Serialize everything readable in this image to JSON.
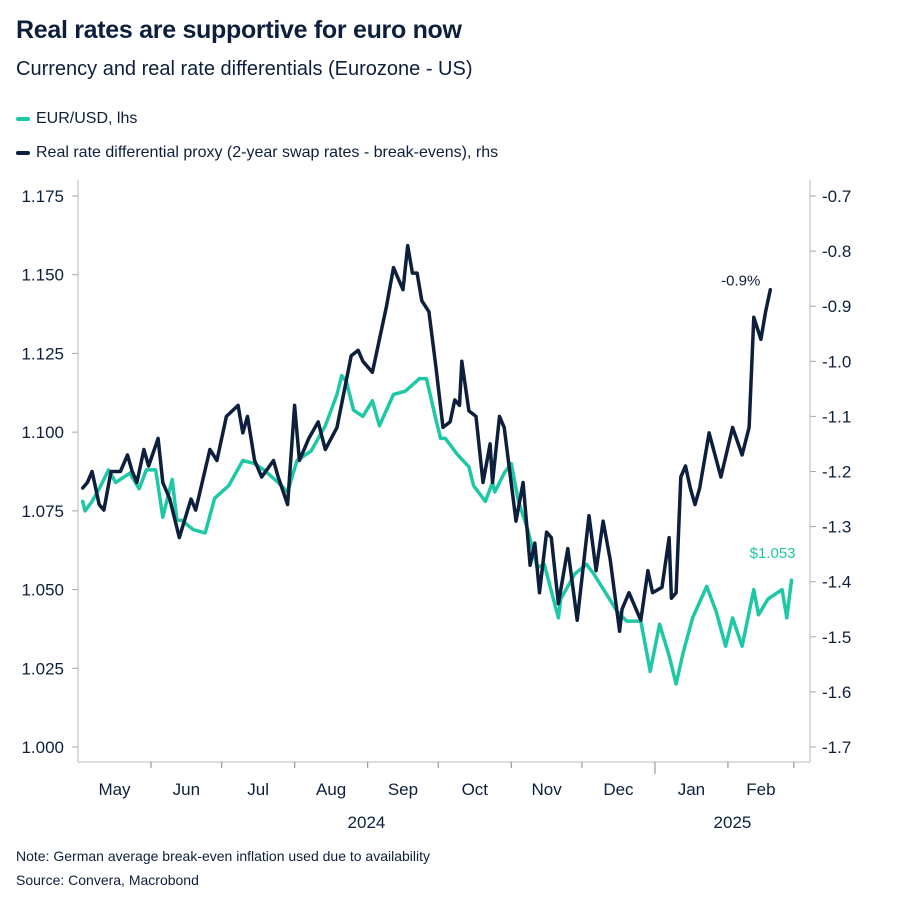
{
  "title": "Real rates are supportive for euro now",
  "subtitle": "Currency and real rate differentials (Eurozone - US)",
  "note": "Note: German average break-even inflation used due to availability",
  "source": "Source: Convera, Macrobond",
  "colors": {
    "eurusd": "#1ec8a5",
    "real_rate": "#0d1f3c",
    "axis": "#d0d0d0",
    "text": "#0d1f3c"
  },
  "chart_data": {
    "type": "line",
    "title": "Real rates are supportive for euro now",
    "subtitle": "Currency and real rate differentials (Eurozone - US)",
    "grid": false,
    "legend_placement": "top-left",
    "x_range": [
      "2024-05-01",
      "2025-03-07"
    ],
    "x_month_labels": [
      "May",
      "Jun",
      "Jul",
      "Aug",
      "Sep",
      "Oct",
      "Nov",
      "Dec",
      "Jan",
      "Feb"
    ],
    "x_year_labels": [
      "2024",
      "2025"
    ],
    "y_left": {
      "range": [
        1.0,
        1.175
      ],
      "ticks": [
        "1.000",
        "1.025",
        "1.050",
        "1.075",
        "1.100",
        "1.125",
        "1.150",
        "1.175"
      ]
    },
    "y_right": {
      "range": [
        -1.7,
        -0.7
      ],
      "ticks": [
        "-1.7",
        "-1.6",
        "-1.5",
        "-1.4",
        "-1.3",
        "-1.2",
        "-1.1",
        "-1.0",
        "-0.9",
        "-0.8",
        "-0.7"
      ]
    },
    "series": [
      {
        "name": "EUR/USD, lhs",
        "axis": "left",
        "color": "#1ec8a5",
        "end_label": "$1.053",
        "points": [
          [
            "2024-05-03",
            1.078
          ],
          [
            "2024-05-04",
            1.075
          ],
          [
            "2024-05-07",
            1.078
          ],
          [
            "2024-05-10",
            1.082
          ],
          [
            "2024-05-14",
            1.088
          ],
          [
            "2024-05-17",
            1.084
          ],
          [
            "2024-05-23",
            1.087
          ],
          [
            "2024-05-27",
            1.082
          ],
          [
            "2024-05-30",
            1.088
          ],
          [
            "2024-06-03",
            1.088
          ],
          [
            "2024-06-06",
            1.073
          ],
          [
            "2024-06-10",
            1.085
          ],
          [
            "2024-06-12",
            1.072
          ],
          [
            "2024-06-14",
            1.072
          ],
          [
            "2024-06-19",
            1.069
          ],
          [
            "2024-06-24",
            1.068
          ],
          [
            "2024-06-28",
            1.079
          ],
          [
            "2024-07-04",
            1.083
          ],
          [
            "2024-07-10",
            1.091
          ],
          [
            "2024-07-15",
            1.09
          ],
          [
            "2024-07-19",
            1.088
          ],
          [
            "2024-07-25",
            1.084
          ],
          [
            "2024-07-29",
            1.081
          ],
          [
            "2024-08-02",
            1.091
          ],
          [
            "2024-08-08",
            1.094
          ],
          [
            "2024-08-14",
            1.102
          ],
          [
            "2024-08-19",
            1.112
          ],
          [
            "2024-08-21",
            1.118
          ],
          [
            "2024-08-23",
            1.116
          ],
          [
            "2024-08-26",
            1.107
          ],
          [
            "2024-08-30",
            1.105
          ],
          [
            "2024-09-03",
            1.11
          ],
          [
            "2024-09-06",
            1.102
          ],
          [
            "2024-09-12",
            1.112
          ],
          [
            "2024-09-17",
            1.113
          ],
          [
            "2024-09-23",
            1.117
          ],
          [
            "2024-09-26",
            1.117
          ],
          [
            "2024-09-30",
            1.104
          ],
          [
            "2024-10-02",
            1.098
          ],
          [
            "2024-10-04",
            1.098
          ],
          [
            "2024-10-09",
            1.093
          ],
          [
            "2024-10-14",
            1.089
          ],
          [
            "2024-10-16",
            1.083
          ],
          [
            "2024-10-21",
            1.078
          ],
          [
            "2024-10-24",
            1.084
          ],
          [
            "2024-10-25",
            1.081
          ],
          [
            "2024-10-29",
            1.087
          ],
          [
            "2024-11-01",
            1.09
          ],
          [
            "2024-11-04",
            1.078
          ],
          [
            "2024-11-08",
            1.069
          ],
          [
            "2024-11-12",
            1.057
          ],
          [
            "2024-11-15",
            1.058
          ],
          [
            "2024-11-21",
            1.041
          ],
          [
            "2024-11-22",
            1.047
          ],
          [
            "2024-11-28",
            1.055
          ],
          [
            "2024-12-03",
            1.058
          ],
          [
            "2024-12-06",
            1.055
          ],
          [
            "2024-12-11",
            1.049
          ],
          [
            "2024-12-16",
            1.043
          ],
          [
            "2024-12-20",
            1.04
          ],
          [
            "2024-12-26",
            1.04
          ],
          [
            "2024-12-30",
            1.024
          ],
          [
            "2025-01-03",
            1.039
          ],
          [
            "2025-01-07",
            1.029
          ],
          [
            "2025-01-10",
            1.02
          ],
          [
            "2025-01-13",
            1.03
          ],
          [
            "2025-01-17",
            1.041
          ],
          [
            "2025-01-23",
            1.051
          ],
          [
            "2025-01-27",
            1.043
          ],
          [
            "2025-01-31",
            1.032
          ],
          [
            "2025-02-03",
            1.041
          ],
          [
            "2025-02-07",
            1.032
          ],
          [
            "2025-02-12",
            1.05
          ],
          [
            "2025-02-14",
            1.042
          ],
          [
            "2025-02-18",
            1.047
          ],
          [
            "2025-02-24",
            1.05
          ],
          [
            "2025-02-26",
            1.041
          ],
          [
            "2025-02-28",
            1.053
          ]
        ]
      },
      {
        "name": "Real rate differential proxy (2-year swap rates - break-evens), rhs",
        "axis": "right",
        "color": "#0d1f3c",
        "end_label": "-0.9%",
        "points": [
          [
            "2024-05-03",
            -1.23
          ],
          [
            "2024-05-05",
            -1.22
          ],
          [
            "2024-05-07",
            -1.2
          ],
          [
            "2024-05-10",
            -1.26
          ],
          [
            "2024-05-12",
            -1.27
          ],
          [
            "2024-05-15",
            -1.2
          ],
          [
            "2024-05-19",
            -1.2
          ],
          [
            "2024-05-22",
            -1.17
          ],
          [
            "2024-05-24",
            -1.2
          ],
          [
            "2024-05-26",
            -1.22
          ],
          [
            "2024-05-29",
            -1.16
          ],
          [
            "2024-05-31",
            -1.19
          ],
          [
            "2024-06-04",
            -1.14
          ],
          [
            "2024-06-06",
            -1.22
          ],
          [
            "2024-06-09",
            -1.25
          ],
          [
            "2024-06-13",
            -1.32
          ],
          [
            "2024-06-18",
            -1.25
          ],
          [
            "2024-06-20",
            -1.27
          ],
          [
            "2024-06-26",
            -1.16
          ],
          [
            "2024-06-29",
            -1.18
          ],
          [
            "2024-07-03",
            -1.1
          ],
          [
            "2024-07-08",
            -1.08
          ],
          [
            "2024-07-10",
            -1.13
          ],
          [
            "2024-07-12",
            -1.1
          ],
          [
            "2024-07-15",
            -1.18
          ],
          [
            "2024-07-18",
            -1.21
          ],
          [
            "2024-07-23",
            -1.18
          ],
          [
            "2024-07-25",
            -1.21
          ],
          [
            "2024-07-29",
            -1.26
          ],
          [
            "2024-08-01",
            -1.08
          ],
          [
            "2024-08-03",
            -1.18
          ],
          [
            "2024-08-07",
            -1.14
          ],
          [
            "2024-08-11",
            -1.11
          ],
          [
            "2024-08-14",
            -1.16
          ],
          [
            "2024-08-19",
            -1.12
          ],
          [
            "2024-08-25",
            -0.99
          ],
          [
            "2024-08-28",
            -0.98
          ],
          [
            "2024-08-30",
            -1.0
          ],
          [
            "2024-09-03",
            -1.02
          ],
          [
            "2024-09-05",
            -0.98
          ],
          [
            "2024-09-09",
            -0.9
          ],
          [
            "2024-09-12",
            -0.83
          ],
          [
            "2024-09-16",
            -0.87
          ],
          [
            "2024-09-18",
            -0.79
          ],
          [
            "2024-09-20",
            -0.84
          ],
          [
            "2024-09-22",
            -0.84
          ],
          [
            "2024-09-24",
            -0.89
          ],
          [
            "2024-09-27",
            -0.91
          ],
          [
            "2024-09-30",
            -1.01
          ],
          [
            "2024-10-03",
            -1.12
          ],
          [
            "2024-10-06",
            -1.11
          ],
          [
            "2024-10-08",
            -1.07
          ],
          [
            "2024-10-10",
            -1.08
          ],
          [
            "2024-10-11",
            -1.0
          ],
          [
            "2024-10-14",
            -1.09
          ],
          [
            "2024-10-17",
            -1.1
          ],
          [
            "2024-10-20",
            -1.22
          ],
          [
            "2024-10-23",
            -1.15
          ],
          [
            "2024-10-24",
            -1.22
          ],
          [
            "2024-10-27",
            -1.1
          ],
          [
            "2024-10-29",
            -1.12
          ],
          [
            "2024-11-03",
            -1.29
          ],
          [
            "2024-11-06",
            -1.22
          ],
          [
            "2024-11-09",
            -1.37
          ],
          [
            "2024-11-11",
            -1.33
          ],
          [
            "2024-11-13",
            -1.42
          ],
          [
            "2024-11-16",
            -1.31
          ],
          [
            "2024-11-18",
            -1.32
          ],
          [
            "2024-11-21",
            -1.44
          ],
          [
            "2024-11-25",
            -1.34
          ],
          [
            "2024-11-29",
            -1.47
          ],
          [
            "2024-12-04",
            -1.28
          ],
          [
            "2024-12-07",
            -1.38
          ],
          [
            "2024-12-10",
            -1.29
          ],
          [
            "2024-12-13",
            -1.36
          ],
          [
            "2024-12-17",
            -1.49
          ],
          [
            "2024-12-18",
            -1.45
          ],
          [
            "2024-12-21",
            -1.42
          ],
          [
            "2024-12-26",
            -1.47
          ],
          [
            "2024-12-29",
            -1.38
          ],
          [
            "2024-12-31",
            -1.42
          ],
          [
            "2025-01-04",
            -1.41
          ],
          [
            "2025-01-07",
            -1.32
          ],
          [
            "2025-01-08",
            -1.43
          ],
          [
            "2025-01-10",
            -1.42
          ],
          [
            "2025-01-12",
            -1.21
          ],
          [
            "2025-01-14",
            -1.19
          ],
          [
            "2025-01-16",
            -1.23
          ],
          [
            "2025-01-18",
            -1.26
          ],
          [
            "2025-01-20",
            -1.23
          ],
          [
            "2025-01-24",
            -1.13
          ],
          [
            "2025-01-29",
            -1.21
          ],
          [
            "2025-02-03",
            -1.12
          ],
          [
            "2025-02-07",
            -1.17
          ],
          [
            "2025-02-10",
            -1.12
          ],
          [
            "2025-02-12",
            -0.92
          ],
          [
            "2025-02-15",
            -0.96
          ],
          [
            "2025-02-17",
            -0.91
          ],
          [
            "2025-02-19",
            -0.87
          ]
        ]
      }
    ]
  }
}
